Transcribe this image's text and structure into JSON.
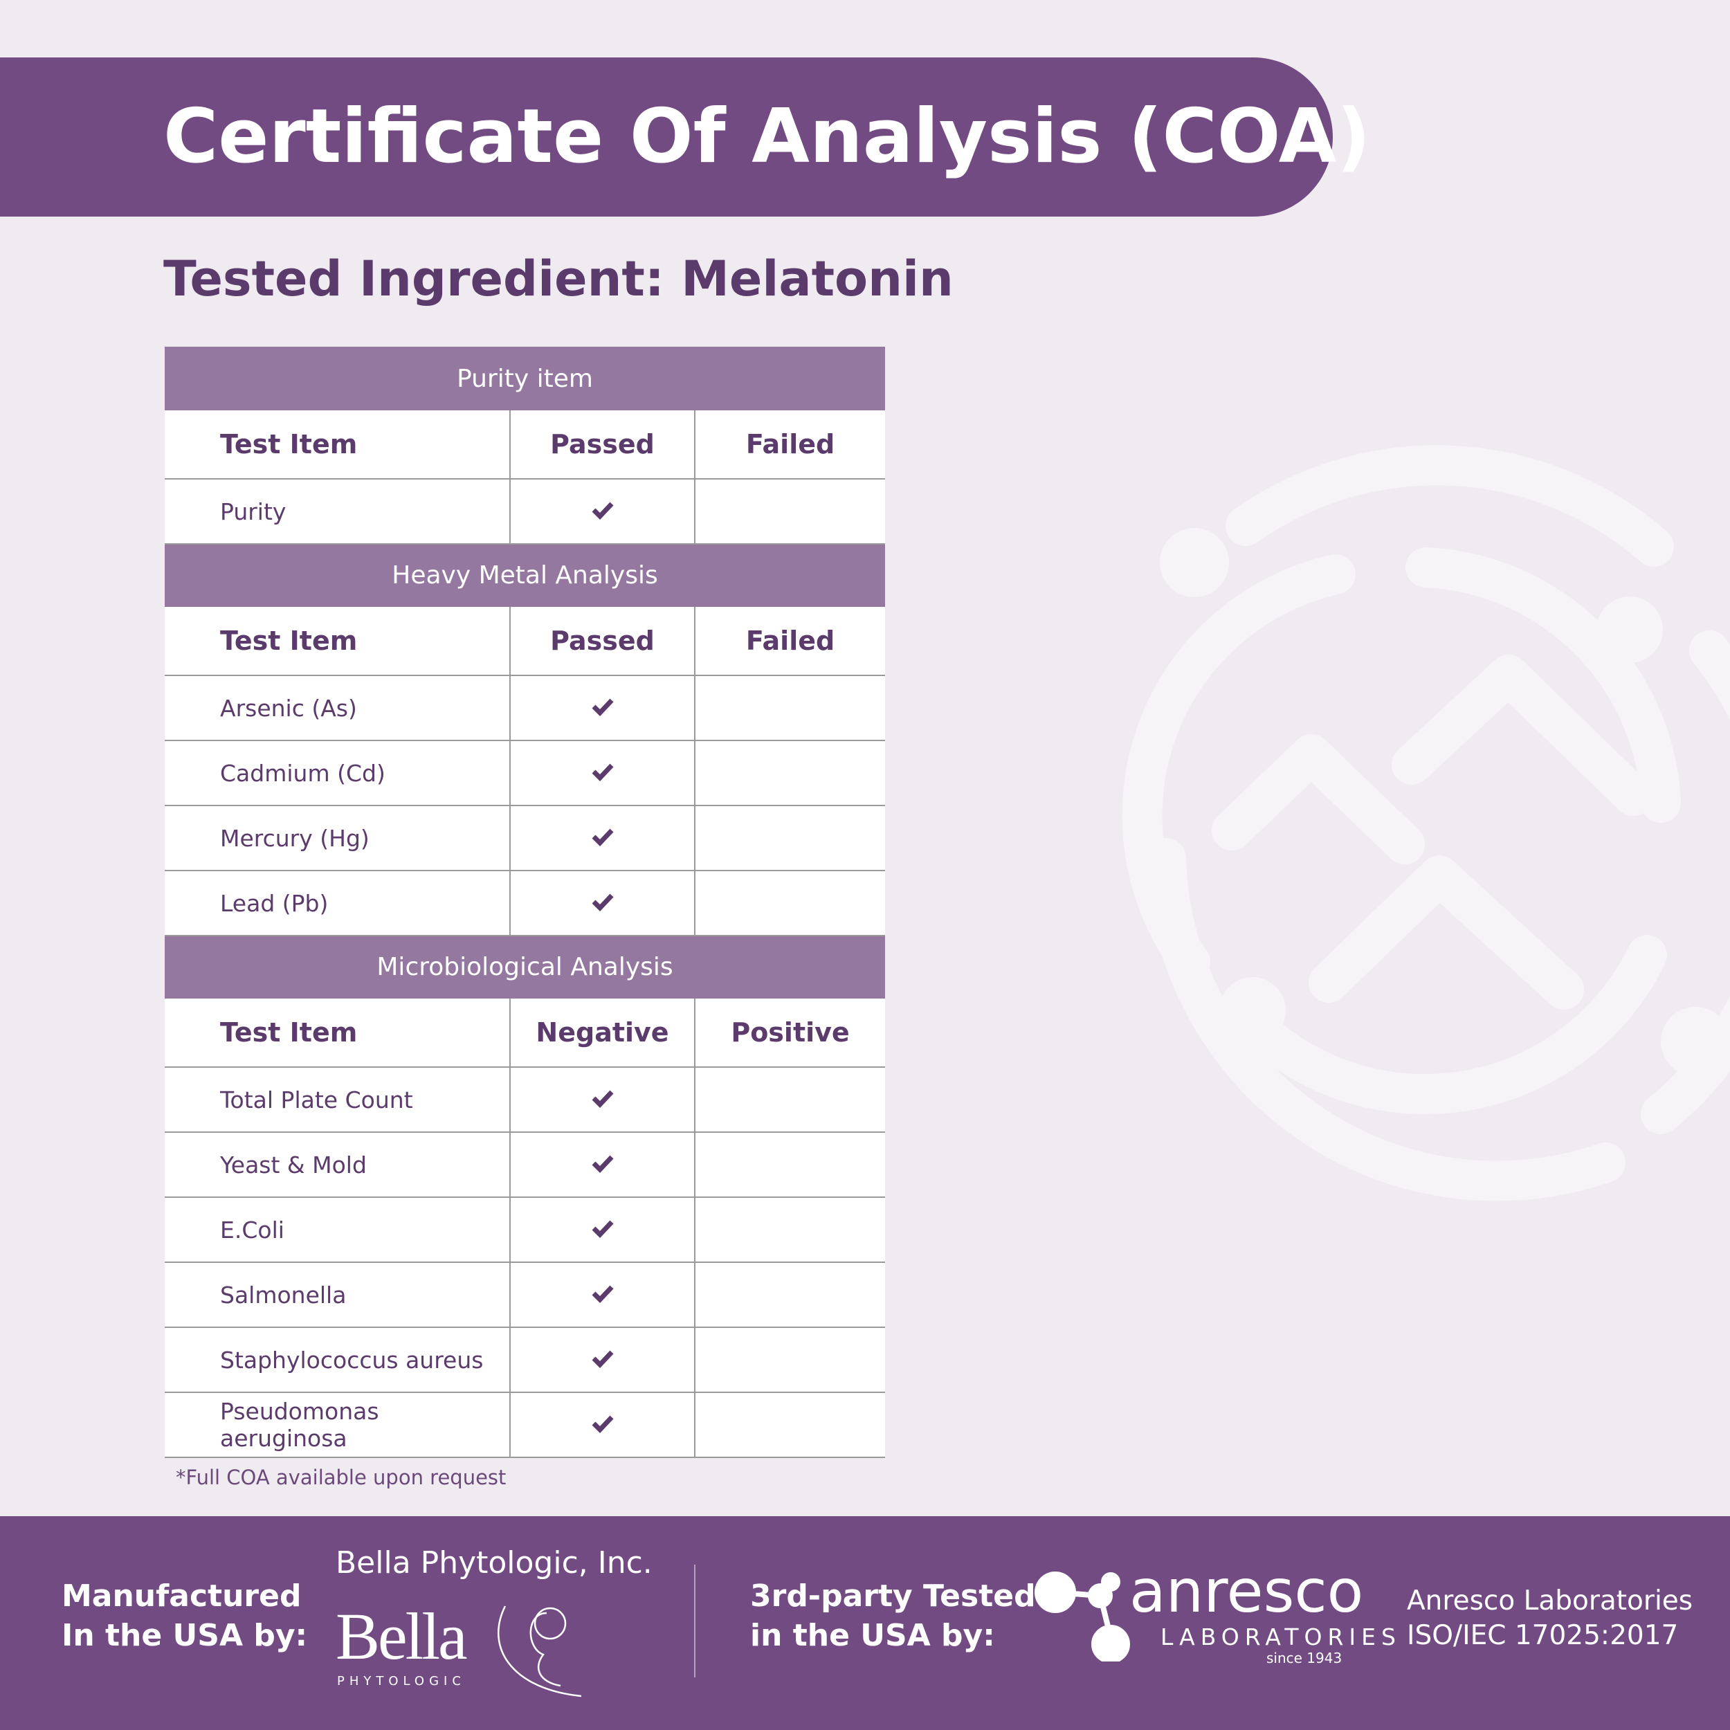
{
  "header": {
    "title": "Certificate Of Analysis (COA)"
  },
  "subtitle": "Tested Ingredient: Melatonin",
  "sections": [
    {
      "title": "Purity item",
      "columns": [
        "Test Item",
        "Passed",
        "Failed"
      ],
      "rows": [
        "Purity"
      ]
    },
    {
      "title": "Heavy Metal Analysis",
      "columns": [
        "Test Item",
        "Passed",
        "Failed"
      ],
      "rows": [
        "Arsenic (As)",
        "Cadmium (Cd)",
        "Mercury (Hg)",
        "Lead (Pb)"
      ]
    },
    {
      "title": "Microbiological Analysis",
      "columns": [
        "Test Item",
        "Negative",
        "Positive"
      ],
      "rows": [
        "Total Plate Count",
        "Yeast & Mold",
        "E.Coli",
        "Salmonella",
        "Staphylococcus aureus",
        "Pseudomonas aeruginosa"
      ]
    }
  ],
  "footnote": "*Full COA available upon request",
  "footer": {
    "manufacturer": {
      "label": [
        "Manufactured",
        "In the USA by:"
      ],
      "company": "Bella Phytologic, Inc.",
      "logo": "Bella",
      "logo_sub": "PHYTOLOGIC"
    },
    "tester": {
      "label": [
        "3rd-party Tested",
        "in the USA by:"
      ],
      "logo": "anresco",
      "logo_sub": "LABORATORIES",
      "since": "since 1943",
      "name": "Anresco Laboratories",
      "accreditation": "ISO/IEC 17025:2017"
    }
  }
}
